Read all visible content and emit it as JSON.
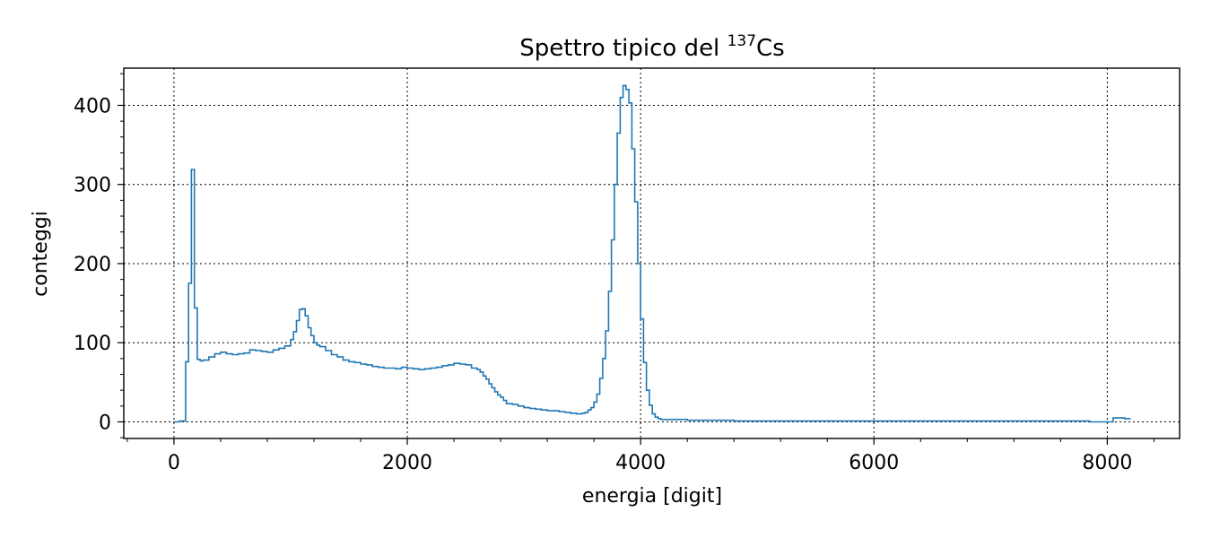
{
  "chart_data": {
    "type": "histogram",
    "title": "Spettro tipico del",
    "title_isotope_mass": "137",
    "title_isotope_symbol": "Cs",
    "xlabel": "energia [digit]",
    "ylabel": "conteggi",
    "xlim": [
      -430,
      8620
    ],
    "ylim": [
      -21,
      447
    ],
    "xticks": [
      0,
      2000,
      4000,
      6000,
      8000
    ],
    "yticks": [
      0,
      100,
      200,
      300,
      400
    ],
    "grid": true,
    "line_color": "#1f77b4",
    "bin_edges": [
      0,
      50,
      100,
      125,
      150,
      175,
      200,
      225,
      250,
      300,
      350,
      400,
      450,
      500,
      550,
      600,
      650,
      700,
      750,
      800,
      850,
      900,
      950,
      1000,
      1025,
      1050,
      1075,
      1100,
      1125,
      1150,
      1175,
      1200,
      1225,
      1250,
      1300,
      1350,
      1400,
      1450,
      1500,
      1550,
      1600,
      1650,
      1700,
      1750,
      1800,
      1850,
      1900,
      1950,
      2000,
      2050,
      2100,
      2150,
      2200,
      2250,
      2300,
      2350,
      2400,
      2450,
      2500,
      2550,
      2600,
      2625,
      2650,
      2675,
      2700,
      2725,
      2750,
      2775,
      2800,
      2825,
      2850,
      2900,
      2950,
      3000,
      3050,
      3100,
      3150,
      3200,
      3250,
      3300,
      3350,
      3400,
      3450,
      3500,
      3525,
      3550,
      3575,
      3600,
      3625,
      3650,
      3675,
      3700,
      3725,
      3750,
      3775,
      3800,
      3825,
      3850,
      3875,
      3900,
      3925,
      3950,
      3975,
      4000,
      4025,
      4050,
      4075,
      4100,
      4125,
      4150,
      4175,
      4200,
      4250,
      4300,
      4400,
      4500,
      4600,
      4700,
      4800,
      4900,
      5000,
      7850,
      8050,
      8150,
      8200
    ],
    "counts": [
      0,
      1,
      76,
      175,
      319,
      144,
      79,
      77,
      78,
      82,
      86,
      88,
      86,
      85,
      86,
      87,
      91,
      90,
      89,
      88,
      91,
      93,
      96,
      104,
      114,
      128,
      142,
      143,
      134,
      119,
      109,
      100,
      97,
      95,
      90,
      85,
      82,
      78,
      76,
      75,
      73,
      72,
      70,
      69,
      68,
      68,
      67,
      69,
      68,
      67,
      66,
      67,
      68,
      69,
      71,
      72,
      74,
      73,
      72,
      68,
      66,
      63,
      58,
      54,
      48,
      43,
      38,
      34,
      31,
      27,
      23,
      22,
      20,
      18,
      17,
      16,
      15,
      14,
      14,
      13,
      12,
      11,
      10,
      11,
      12,
      15,
      18,
      25,
      35,
      55,
      80,
      115,
      165,
      230,
      300,
      365,
      410,
      425,
      420,
      403,
      345,
      278,
      200,
      130,
      75,
      40,
      21,
      10,
      6,
      4,
      3,
      3,
      3,
      3,
      2,
      2,
      2,
      2,
      1,
      1,
      1,
      0,
      5,
      4
    ]
  }
}
